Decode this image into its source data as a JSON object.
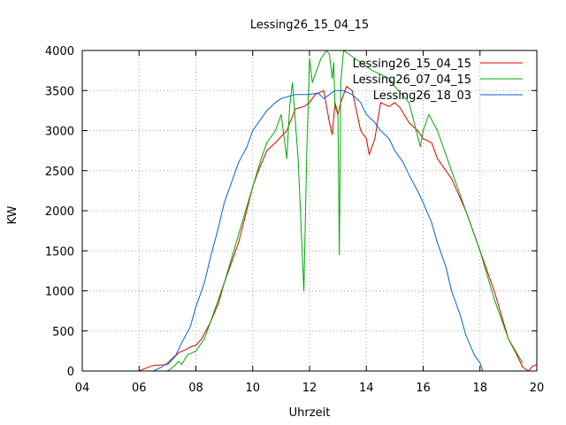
{
  "chart_data": {
    "type": "line",
    "title": "Lessing26_15_04_15",
    "xlabel": "Uhrzeit",
    "ylabel": "KW",
    "xlim": [
      4,
      20
    ],
    "ylim": [
      0,
      4000
    ],
    "x_ticks": [
      "04",
      "06",
      "08",
      "10",
      "12",
      "14",
      "16",
      "18",
      "20"
    ],
    "y_ticks": [
      "0",
      "500",
      "1000",
      "1500",
      "2000",
      "2500",
      "3000",
      "3500",
      "4000"
    ],
    "grid": true,
    "legend_position": "top-right",
    "series": [
      {
        "name": "Lessing26_15_04_15",
        "color": "#dd0000",
        "x": [
          6.0,
          6.2,
          6.5,
          7.0,
          7.4,
          7.6,
          7.8,
          8.0,
          8.2,
          8.5,
          8.8,
          9.0,
          9.5,
          10.0,
          10.2,
          10.5,
          10.8,
          11.2,
          11.5,
          11.8,
          12.0,
          12.2,
          12.5,
          12.7,
          12.8,
          12.9,
          13.0,
          13.1,
          13.2,
          13.3,
          13.5,
          13.8,
          14.0,
          14.1,
          14.3,
          14.5,
          14.8,
          15.0,
          15.2,
          15.5,
          15.8,
          16.0,
          16.3,
          16.5,
          17.0,
          17.5,
          18.0,
          18.5,
          19.0,
          19.3,
          19.5,
          19.7,
          19.85,
          20.0
        ],
        "y": [
          0,
          30,
          70,
          80,
          230,
          260,
          300,
          320,
          400,
          600,
          850,
          1100,
          1600,
          2300,
          2500,
          2750,
          2850,
          3000,
          3270,
          3300,
          3350,
          3450,
          3500,
          3100,
          2950,
          3350,
          3200,
          3350,
          3450,
          3550,
          3500,
          3000,
          2900,
          2700,
          2900,
          3350,
          3300,
          3350,
          3280,
          3100,
          3000,
          2900,
          2850,
          2650,
          2400,
          2000,
          1500,
          1000,
          400,
          200,
          50,
          0,
          60,
          80
        ]
      },
      {
        "name": "Lessing26_07_04_15",
        "color": "#00aa00",
        "x": [
          7.0,
          7.2,
          7.4,
          7.5,
          7.7,
          8.0,
          8.3,
          8.5,
          8.8,
          9.0,
          9.5,
          10.0,
          10.3,
          10.5,
          10.8,
          11.0,
          11.2,
          11.3,
          11.4,
          11.6,
          11.8,
          11.9,
          12.0,
          12.1,
          12.2,
          12.4,
          12.5,
          12.6,
          12.7,
          12.8,
          12.85,
          12.9,
          13.0,
          13.05,
          13.1,
          13.2,
          13.4,
          13.6,
          13.8,
          14.0,
          14.2,
          14.5,
          14.8,
          15.0,
          15.5,
          15.9,
          16.0,
          16.2,
          16.5,
          17.0,
          17.5,
          18.0,
          18.5,
          19.0,
          19.5
        ],
        "y": [
          0,
          50,
          120,
          80,
          200,
          250,
          400,
          600,
          900,
          1100,
          1700,
          2300,
          2650,
          2850,
          3000,
          3200,
          2650,
          3300,
          3600,
          2650,
          1000,
          2700,
          3900,
          3600,
          3700,
          3900,
          3950,
          4000,
          3950,
          3650,
          3850,
          3300,
          3200,
          1450,
          3600,
          4000,
          3950,
          3900,
          3850,
          3800,
          3750,
          3700,
          3650,
          3550,
          3350,
          2800,
          3000,
          3200,
          3000,
          2500,
          2000,
          1500,
          900,
          400,
          100
        ]
      },
      {
        "name": "Lessing26_18_03",
        "color": "#0066cc",
        "x": [
          6.5,
          6.8,
          7.0,
          7.3,
          7.5,
          7.8,
          8.0,
          8.3,
          8.5,
          8.8,
          9.0,
          9.3,
          9.5,
          9.8,
          10.0,
          10.3,
          10.5,
          10.8,
          11.0,
          11.2,
          11.5,
          11.8,
          12.0,
          12.3,
          12.5,
          12.7,
          12.9,
          13.2,
          13.5,
          13.8,
          14.0,
          14.3,
          14.5,
          14.8,
          15.0,
          15.3,
          15.5,
          15.8,
          16.0,
          16.3,
          16.5,
          16.8,
          17.0,
          17.3,
          17.5,
          17.8,
          18.0,
          18.05,
          18.1
        ],
        "y": [
          0,
          50,
          100,
          200,
          350,
          550,
          800,
          1100,
          1400,
          1800,
          2100,
          2400,
          2600,
          2800,
          3000,
          3150,
          3250,
          3350,
          3400,
          3420,
          3450,
          3450,
          3450,
          3470,
          3400,
          3450,
          3500,
          3500,
          3450,
          3350,
          3200,
          3100,
          3000,
          2900,
          2750,
          2600,
          2450,
          2250,
          2100,
          1850,
          1600,
          1300,
          1000,
          700,
          450,
          200,
          100,
          50,
          0
        ]
      }
    ]
  }
}
